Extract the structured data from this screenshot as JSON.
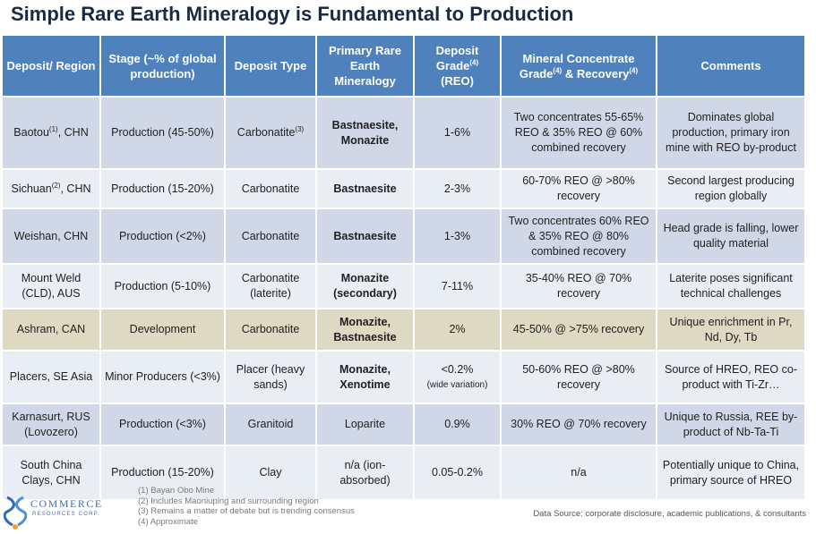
{
  "title": "Simple Rare Earth Mineralogy is Fundamental to Production",
  "headers": [
    {
      "text": "Deposit/ Region",
      "sup": ""
    },
    {
      "text": "Stage (~% of global production)",
      "sup": ""
    },
    {
      "text": "Deposit Type",
      "sup": ""
    },
    {
      "text": "Primary Rare Earth Mineralogy",
      "sup": ""
    },
    {
      "text": "Deposit Grade",
      "sup": "(4)",
      "after": "(REO)"
    },
    {
      "text": "Mineral Concentrate Grade",
      "sup": "(4)",
      "after": "& Recovery",
      "sup2": "(4)"
    },
    {
      "text": "Comments",
      "sup": ""
    }
  ],
  "rows": [
    {
      "deposit": "Baotou",
      "deposit_sup": "(1)",
      "deposit_after": ", CHN",
      "stage": "Production (45-50%)",
      "type": "Carbonatite",
      "type_sup": "(3)",
      "mineralogy": "Bastnaesite, Monazite",
      "grade": "1-6%",
      "grade_note": "",
      "concentrate": "Two concentrates 55-65% REO & 35% REO @ 60% combined recovery",
      "comments": "Dominates global production, primary iron mine with REO by-product"
    },
    {
      "deposit": "Sichuan",
      "deposit_sup": "(2)",
      "deposit_after": ", CHN",
      "stage": "Production (15-20%)",
      "type": "Carbonatite",
      "type_sup": "",
      "mineralogy": "Bastnaesite",
      "grade": "2-3%",
      "grade_note": "",
      "concentrate": "60-70% REO @ >80% recovery",
      "comments": "Second largest producing region globally"
    },
    {
      "deposit": "Weishan, CHN",
      "deposit_sup": "",
      "deposit_after": "",
      "stage": "Production (<2%)",
      "type": "Carbonatite",
      "type_sup": "",
      "mineralogy": "Bastnaesite",
      "grade": "1-3%",
      "grade_note": "",
      "concentrate": "Two concentrates 60% REO & 35% REO @ 80% combined recovery",
      "comments": "Head grade is falling, lower quality material"
    },
    {
      "deposit": "Mount Weld (CLD), AUS",
      "deposit_sup": "",
      "deposit_after": "",
      "stage": "Production (5-10%)",
      "type": "Carbonatite (laterite)",
      "type_sup": "",
      "mineralogy": "Monazite (secondary)",
      "grade": "7-11%",
      "grade_note": "",
      "concentrate": "35-40% REO @ 70% recovery",
      "comments": "Laterite poses significant technical challenges"
    },
    {
      "deposit": "Ashram, CAN",
      "deposit_sup": "",
      "deposit_after": "",
      "stage": "Development",
      "type": "Carbonatite",
      "type_sup": "",
      "mineralogy": "Monazite, Bastnaesite",
      "grade": "2%",
      "grade_note": "",
      "concentrate": "45-50% @ >75% recovery",
      "comments": "Unique enrichment in Pr, Nd, Dy, Tb"
    },
    {
      "deposit": "Placers, SE Asia",
      "deposit_sup": "",
      "deposit_after": "",
      "stage": "Minor Producers (<3%)",
      "type": "Placer (heavy sands)",
      "type_sup": "",
      "mineralogy": "Monazite, Xenotime",
      "grade": "<0.2%",
      "grade_note": "(wide variation)",
      "concentrate": "50-60% REO @ >80% recovery",
      "comments": "Source of HREO, REO co-product with Ti-Zr…"
    },
    {
      "deposit": "Karnasurt, RUS (Lovozero)",
      "deposit_sup": "",
      "deposit_after": "",
      "stage": "Production (<3%)",
      "type": "Granitoid",
      "type_sup": "",
      "mineralogy": "Loparite",
      "grade": "0.9%",
      "grade_note": "",
      "concentrate": "30% REO @ 70% recovery",
      "comments": "Unique to Russia, REE by-product of Nb-Ta-Ti"
    },
    {
      "deposit": "South China Clays, CHN",
      "deposit_sup": "",
      "deposit_after": "",
      "stage": "Production (15-20%)",
      "type": "Clay",
      "type_sup": "",
      "mineralogy": "n/a (ion-absorbed)",
      "grade": "0.05-0.2%",
      "grade_note": "",
      "concentrate": "n/a",
      "comments": "Potentially unique to China, primary source of HREO"
    }
  ],
  "footnotes": [
    "(1) Bayan Obo Mine",
    "(2) Includes Maoniuping and surrounding region",
    "(3) Remains a matter of debate but is trending consensus",
    "(4) Approximate"
  ],
  "source": "Data Source: corporate disclosure, academic publications, & consultants",
  "logo": {
    "name": "COMMERCE",
    "sub": "RESOURCES CORP."
  },
  "colors": {
    "header": "#4f81bd",
    "row_odd": "#d0d8e8",
    "row_even": "#e9edf4",
    "row_highlight": "#ddd9c3",
    "title": "#1a2a44"
  }
}
